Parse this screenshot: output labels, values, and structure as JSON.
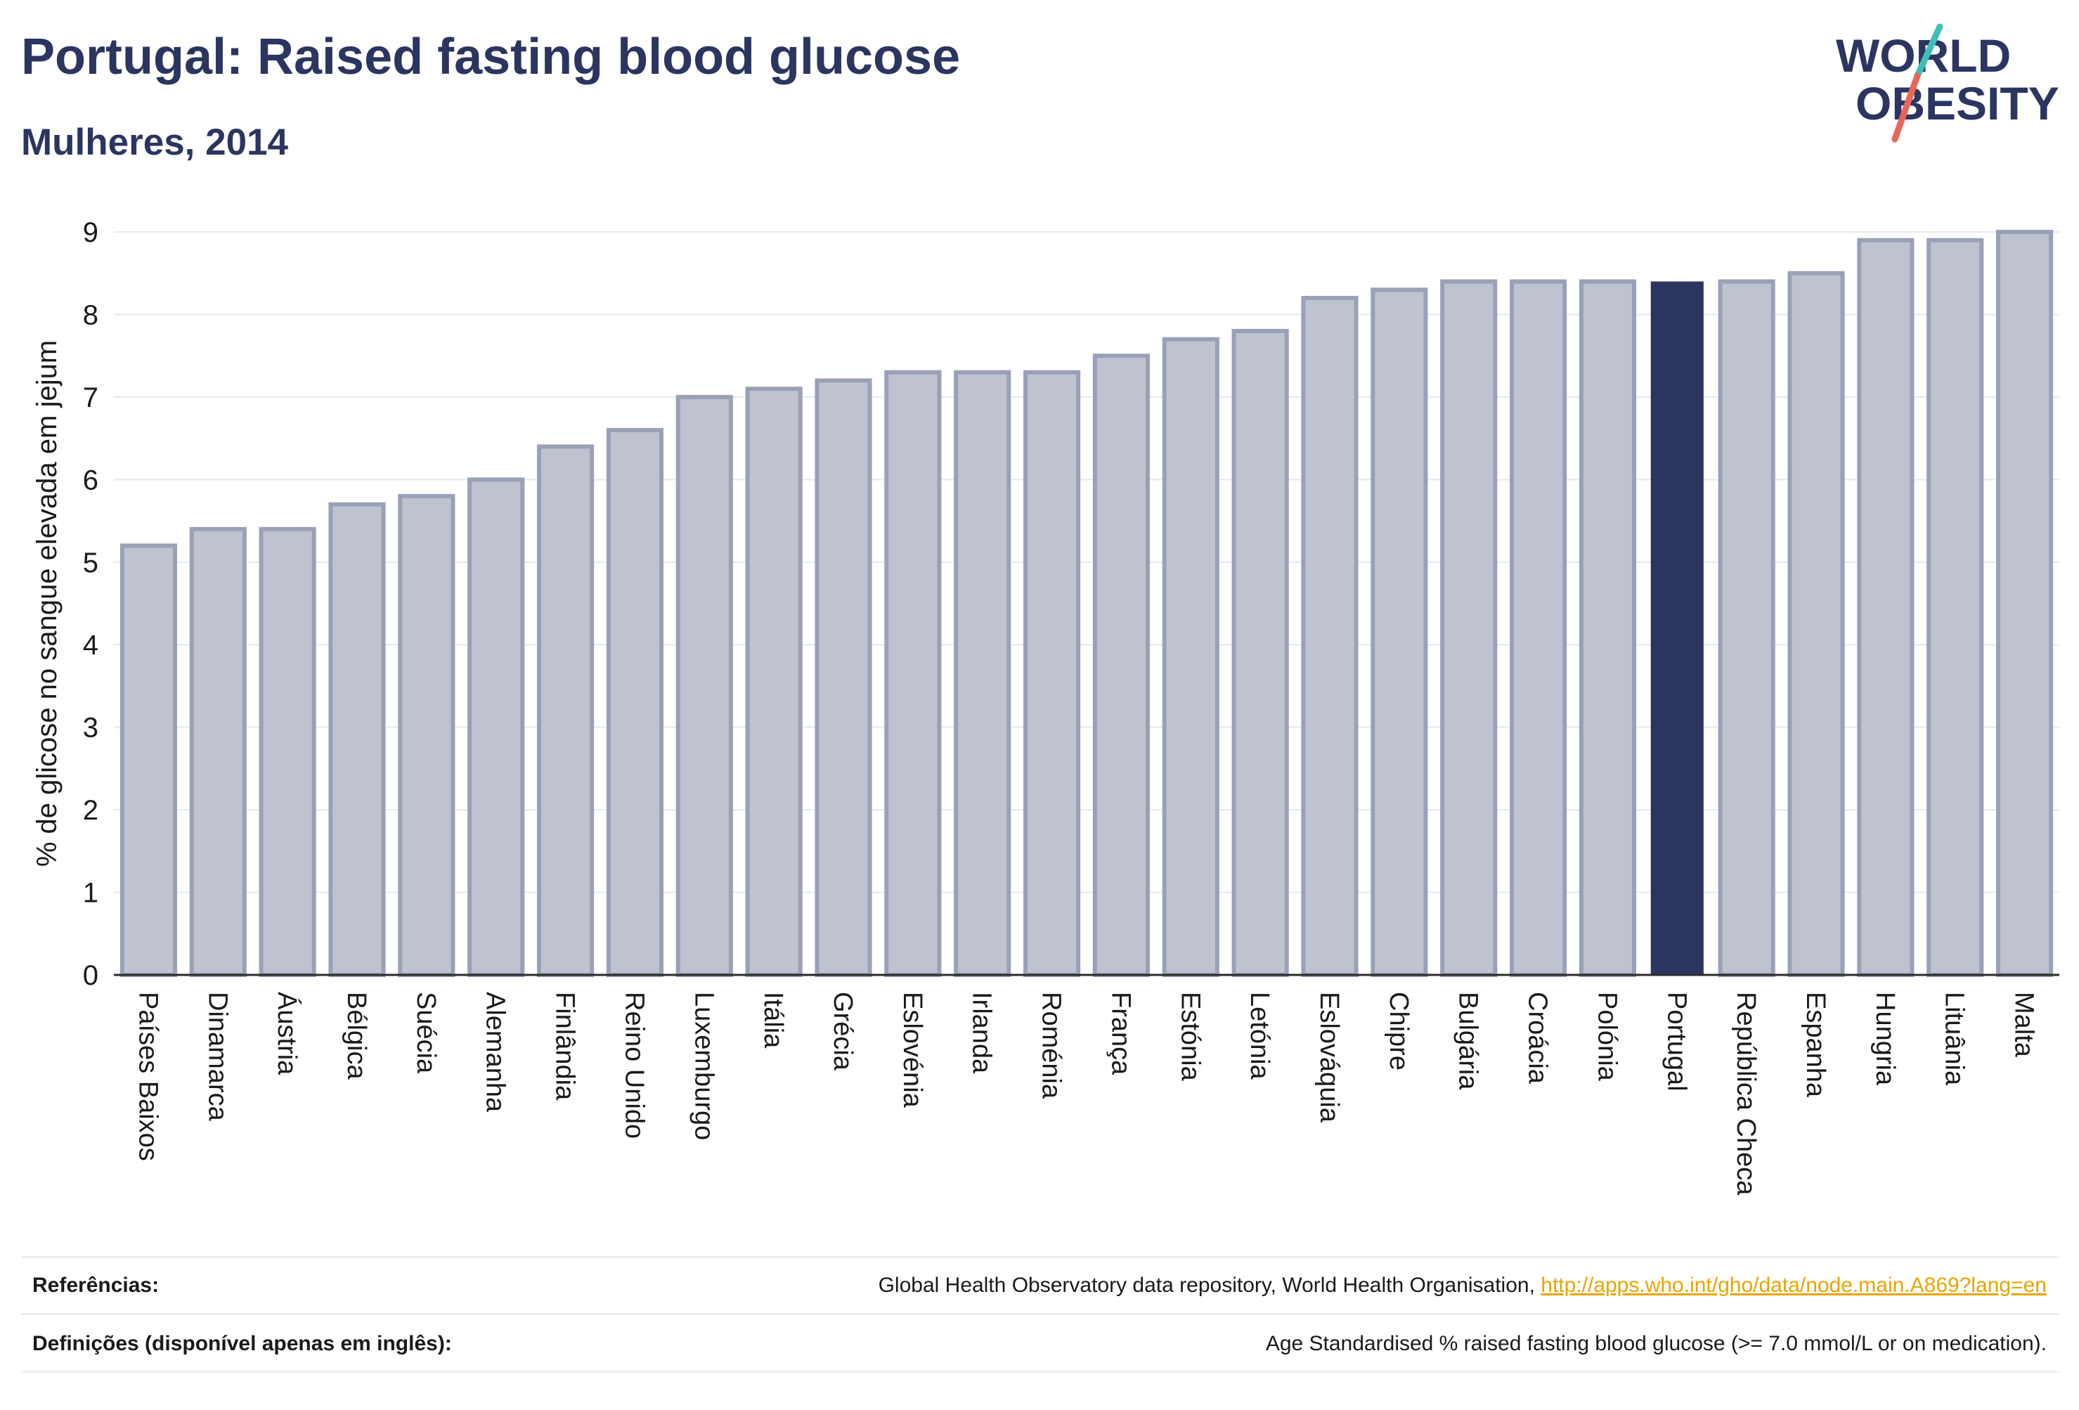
{
  "header": {
    "title": "Portugal: Raised fasting blood glucose",
    "subtitle": "Mulheres, 2014"
  },
  "logo": {
    "line1": "WORLD",
    "line2": "OBESITY",
    "colors": {
      "text": "#2b3560",
      "slash_top": "#3dbfb8",
      "slash_bottom": "#e8665a"
    }
  },
  "chart_data": {
    "type": "bar",
    "title": "Portugal: Raised fasting blood glucose",
    "subtitle": "Mulheres, 2014",
    "xlabel": "",
    "ylabel": "% de glicose no sangue elevada em jejum",
    "ylim": [
      0,
      9.4
    ],
    "yticks": [
      0,
      1,
      2,
      3,
      4,
      5,
      6,
      7,
      8,
      9
    ],
    "grid": true,
    "highlight": "Portugal",
    "colors": {
      "bar": "#bfc3d0",
      "bar_edge": "#9aa0b6",
      "highlight": "#2b3560"
    },
    "categories": [
      "Países Baixos",
      "Dinamarca",
      "Áustria",
      "Bélgica",
      "Suécia",
      "Alemanha",
      "Finlândia",
      "Reino Unido",
      "Luxemburgo",
      "Itália",
      "Grécia",
      "Eslovénia",
      "Irlanda",
      "Roménia",
      "França",
      "Estónia",
      "Letónia",
      "Eslováquia",
      "Chipre",
      "Bulgária",
      "Croácia",
      "Polónia",
      "Portugal",
      "República Checa",
      "Espanha",
      "Hungria",
      "Lituânia",
      "Malta"
    ],
    "values": [
      5.2,
      5.4,
      5.4,
      5.7,
      5.8,
      6.0,
      6.4,
      6.6,
      7.0,
      7.1,
      7.2,
      7.3,
      7.3,
      7.3,
      7.5,
      7.7,
      7.8,
      8.2,
      8.3,
      8.4,
      8.4,
      8.4,
      8.4,
      8.4,
      8.5,
      8.9,
      8.9,
      9.0
    ]
  },
  "footer": {
    "references_label": "Referências:",
    "references_text": "Global Health Observatory data repository, World Health Organisation, ",
    "references_link": "http://apps.who.int/gho/data/node.main.A869?lang=en",
    "definitions_label": "Definições (disponível apenas em inglês):",
    "definitions_text": "Age Standardised % raised fasting blood glucose (>= 7.0 mmol/L or on medication)."
  }
}
